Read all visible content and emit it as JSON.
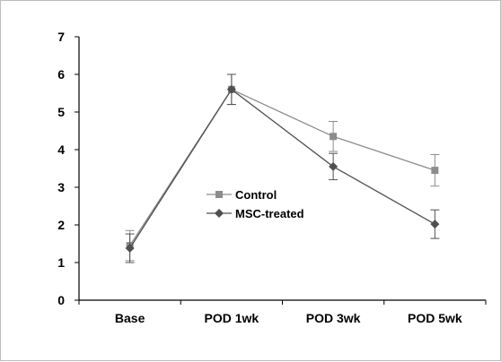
{
  "chart_data": {
    "type": "line",
    "categories": [
      "Base",
      "POD 1wk",
      "POD 3wk",
      "POD 5wk"
    ],
    "ylim": [
      0,
      7
    ],
    "yticks": [
      0,
      1,
      2,
      3,
      4,
      5,
      6,
      7
    ],
    "grid": false,
    "legend_placement": "center",
    "series": [
      {
        "name": "Control",
        "marker": "square",
        "color": "#8c8c8c",
        "values": [
          1.45,
          5.6,
          4.35,
          3.45
        ],
        "errors": [
          0.4,
          0.4,
          0.4,
          0.42
        ]
      },
      {
        "name": "MSC-treated",
        "marker": "diamond",
        "color": "#505050",
        "values": [
          1.38,
          5.6,
          3.55,
          2.02
        ],
        "errors": [
          0.38,
          0.4,
          0.35,
          0.38
        ]
      }
    ]
  }
}
